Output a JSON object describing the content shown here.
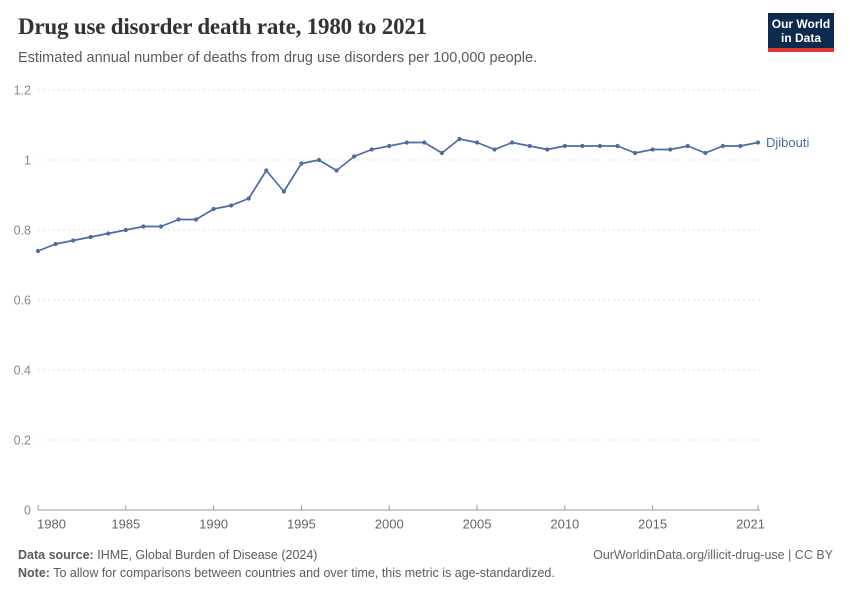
{
  "header": {
    "title": "Drug use disorder death rate, 1980 to 2021",
    "subtitle": "Estimated annual number of deaths from drug use disorders per 100,000 people."
  },
  "logo": {
    "line1": "Our World",
    "line2": "in Data",
    "bg_color": "#0E2A4E",
    "bar_color": "#E0342C"
  },
  "chart_data": {
    "type": "line",
    "title": "Drug use disorder death rate, 1980 to 2021",
    "xlabel": "",
    "ylabel": "",
    "ylim": [
      0,
      1.2
    ],
    "grid": "horizontal-dashed",
    "legend_position": "end-of-line-label",
    "x": [
      1980,
      1981,
      1982,
      1983,
      1984,
      1985,
      1986,
      1987,
      1988,
      1989,
      1990,
      1991,
      1992,
      1993,
      1994,
      1995,
      1996,
      1997,
      1998,
      1999,
      2000,
      2001,
      2002,
      2003,
      2004,
      2005,
      2006,
      2007,
      2008,
      2009,
      2010,
      2011,
      2012,
      2013,
      2014,
      2015,
      2016,
      2017,
      2018,
      2019,
      2020,
      2021
    ],
    "series": [
      {
        "name": "Djibouti",
        "color": "#4C6CA4",
        "values": [
          0.74,
          0.76,
          0.77,
          0.78,
          0.79,
          0.8,
          0.81,
          0.81,
          0.83,
          0.83,
          0.86,
          0.87,
          0.89,
          0.97,
          0.91,
          0.99,
          1.0,
          0.97,
          1.01,
          1.03,
          1.04,
          1.05,
          1.05,
          1.02,
          1.06,
          1.05,
          1.03,
          1.05,
          1.04,
          1.03,
          1.04,
          1.04,
          1.04,
          1.04,
          1.02,
          1.03,
          1.03,
          1.04,
          1.02,
          1.04,
          1.04,
          1.05
        ]
      }
    ],
    "ytick_values": [
      0,
      0.2,
      0.4,
      0.6,
      0.8,
      1,
      1.2
    ],
    "ytick_labels": [
      "0",
      "0.2",
      "0.4",
      "0.6",
      "0.8",
      "1",
      "1.2"
    ],
    "xticks": [
      1980,
      1985,
      1990,
      1995,
      2000,
      2005,
      2010,
      2015,
      2021
    ],
    "colors": {
      "grid": "#e2e2e2",
      "axis": "#999999",
      "y_tick_text": "#8a8a8a",
      "x_tick_text": "#666666"
    }
  },
  "footer": {
    "data_source_label": "Data source:",
    "data_source_value": "IHME, Global Burden of Disease (2024)",
    "note_label": "Note:",
    "note_value": "To allow for comparisons between countries and over time, this metric is age-standardized.",
    "link": "OurWorldinData.org/illicit-drug-use | CC BY"
  }
}
